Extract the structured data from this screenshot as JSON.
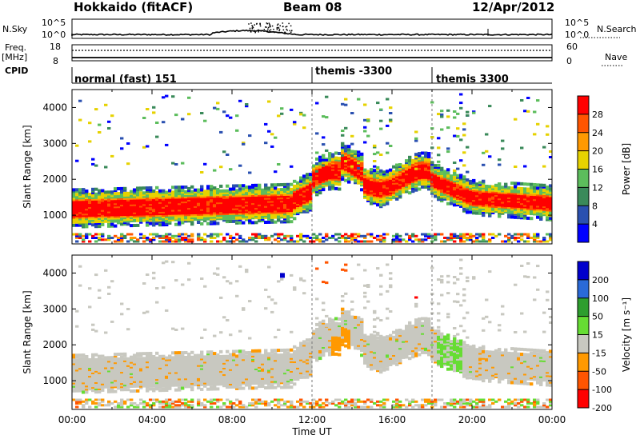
{
  "header": {
    "title": "Hokkaido (fitACF)",
    "beam": "Beam 08",
    "date": "12/Apr/2012"
  },
  "strip_labels": {
    "nsky": "N.Sky",
    "nsky_ticks": [
      "10^5",
      "10^0"
    ],
    "nsearch": "N.Search",
    "freq": "Freq.",
    "freq_unit": "[MHz]",
    "freq_ticks": [
      "18",
      "8"
    ],
    "nave": "Nave",
    "nave_ticks": [
      "60",
      "0"
    ],
    "cpid": "CPID"
  },
  "cpid_segments": [
    {
      "label": "normal (fast) 151",
      "start_h": 0
    },
    {
      "label": "themis -3300",
      "start_h": 12
    },
    {
      "label": "themis 3300",
      "start_h": 18
    }
  ],
  "colors": {
    "power": [
      "#0000ff",
      "#2a50b0",
      "#3a8a5a",
      "#5cbd5c",
      "#e6d200",
      "#ff9900",
      "#ff5500",
      "#ff0000"
    ],
    "velocity": [
      "#0000cc",
      "#2a6ad8",
      "#2e9e2e",
      "#66dd33",
      "#c8c8c0",
      "#ff9900",
      "#ff5500",
      "#ff0000"
    ],
    "velocity_gray": "#c8c8c0"
  },
  "chart_data": [
    {
      "type": "heatmap",
      "ylabel": "Slant Range [km]",
      "yticks": [
        "1000",
        "2000",
        "3000",
        "4000"
      ],
      "ylim": [
        200,
        4500
      ],
      "colorbar_label": "Power [dB]",
      "colorbar_ticks": [
        "4",
        "8",
        "12",
        "16",
        "20",
        "24",
        "28"
      ]
    },
    {
      "type": "heatmap",
      "ylabel": "Slant Range [km]",
      "yticks": [
        "1000",
        "2000",
        "3000",
        "4000"
      ],
      "ylim": [
        200,
        4500
      ],
      "colorbar_label": "Velocity [m s⁻¹]",
      "colorbar_ticks": [
        "200",
        "100",
        "50",
        "15",
        "-15",
        "-50",
        "-100",
        "-200"
      ],
      "xticks": [
        "00:00",
        "04:00",
        "08:00",
        "12:00",
        "16:00",
        "20:00",
        "00:00"
      ],
      "xlabel": "Time UT",
      "xlim_h": [
        0,
        24
      ]
    }
  ]
}
